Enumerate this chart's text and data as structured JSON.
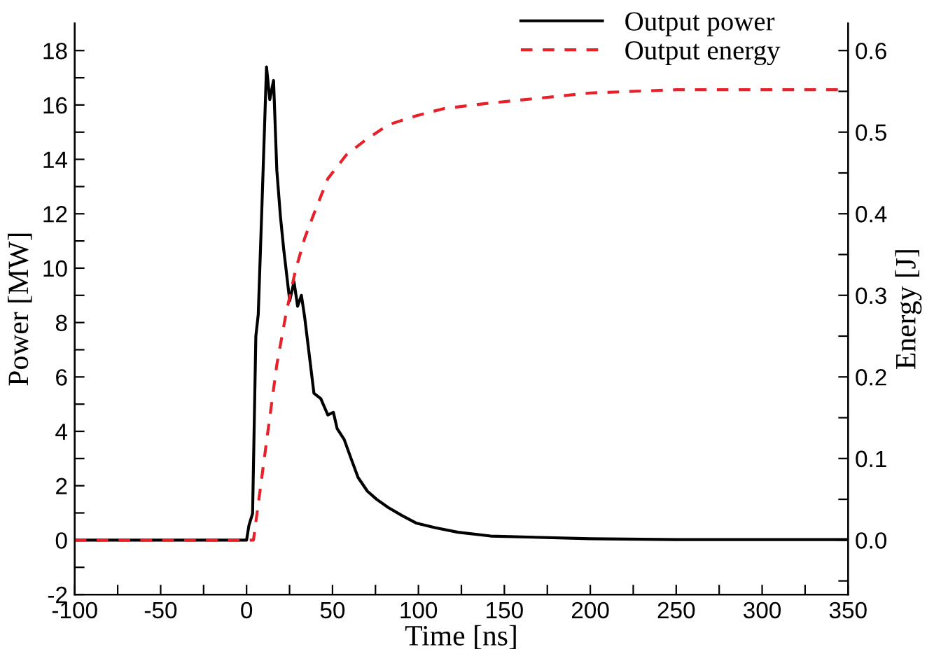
{
  "chart_data": {
    "type": "line",
    "xlabel": "Time [ns]",
    "ylabel": "Power [MW]",
    "y2label": "Energy [J]",
    "xlim": [
      -100,
      350
    ],
    "ylim": [
      -2,
      19
    ],
    "y2lim": [
      -0.0667,
      0.6333
    ],
    "xticks": [
      -100,
      {
        "value": -75,
        "label": null
      },
      -50,
      {
        "value": -25,
        "label": null
      },
      0,
      {
        "value": 25,
        "label": null
      },
      50,
      {
        "value": 75,
        "label": null
      },
      100,
      {
        "value": 125,
        "label": null
      },
      150,
      {
        "value": 175,
        "label": null
      },
      200,
      {
        "value": 225,
        "label": null
      },
      250,
      {
        "value": 275,
        "label": null
      },
      300,
      {
        "value": 325,
        "label": null
      },
      350
    ],
    "yticks": [
      -2,
      {
        "value": -1,
        "label": null
      },
      0,
      {
        "value": 1,
        "label": null
      },
      2,
      {
        "value": 3,
        "label": null
      },
      4,
      {
        "value": 5,
        "label": null
      },
      6,
      {
        "value": 7,
        "label": null
      },
      8,
      {
        "value": 9,
        "label": null
      },
      10,
      {
        "value": 11,
        "label": null
      },
      12,
      {
        "value": 13,
        "label": null
      },
      14,
      {
        "value": 15,
        "label": null
      },
      16,
      {
        "value": 17,
        "label": null
      },
      18
    ],
    "y2ticks": [
      {
        "value": -0.05,
        "label": null
      },
      {
        "value": 0,
        "label": "0.0"
      },
      {
        "value": 0.05,
        "label": null
      },
      0.1,
      {
        "value": 0.15,
        "label": null
      },
      0.2,
      {
        "value": 0.25,
        "label": null
      },
      0.3,
      {
        "value": 0.35,
        "label": null
      },
      0.4,
      {
        "value": 0.45,
        "label": null
      },
      0.5,
      {
        "value": 0.55,
        "label": null
      },
      0.6
    ],
    "legend": "top right",
    "grid": false,
    "series": [
      {
        "name": "Output power",
        "color": "#000000",
        "line_style": "solid",
        "x": [
          -100,
          0,
          1.4,
          3.5,
          5.4,
          6.8,
          9,
          11.6,
          13.5,
          15.7,
          17.6,
          19.7,
          21.6,
          25.1,
          27.6,
          29.7,
          31.9,
          33.8,
          36.5,
          39.2,
          43.2,
          47.3,
          50.5,
          52.7,
          56.8,
          60.8,
          64.9,
          70.3,
          75.7,
          82.4,
          90.5,
          98.6,
          109.5,
          123,
          142,
          200,
          250,
          350
        ],
        "values": [
          0,
          0,
          0.55,
          0.98,
          7.5,
          8.3,
          12.4,
          17.4,
          16.2,
          16.9,
          13.6,
          11.9,
          10.7,
          8.8,
          9.5,
          8.6,
          9.0,
          8.2,
          6.8,
          5.4,
          5.2,
          4.6,
          4.7,
          4.1,
          3.7,
          3.0,
          2.3,
          1.8,
          1.5,
          1.2,
          0.9,
          0.63,
          0.46,
          0.29,
          0.15,
          0.05,
          0.02,
          0.02
        ]
      },
      {
        "name": "Output energy",
        "color": "#e8202a",
        "line_style": "dashed",
        "axis": "y2",
        "x": [
          -100,
          4,
          6.8,
          12.2,
          17.6,
          23,
          28.4,
          33.8,
          39.2,
          47.3,
          58,
          69,
          82.4,
          98.6,
          115,
          139,
          200,
          250,
          350
        ],
        "values": [
          0,
          0,
          0.044,
          0.13,
          0.215,
          0.278,
          0.33,
          0.37,
          0.4,
          0.443,
          0.472,
          0.49,
          0.509,
          0.52,
          0.529,
          0.535,
          0.548,
          0.552,
          0.552
        ]
      }
    ]
  }
}
